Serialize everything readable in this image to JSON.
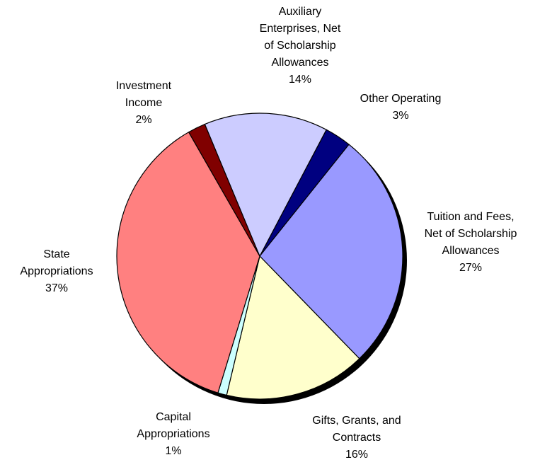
{
  "chart_data": {
    "type": "pie",
    "categories": [
      "Other Operating",
      "Tuition and Fees, Net of Scholarship Allowances",
      "Gifts, Grants, and Contracts",
      "Capital Appropriations",
      "State Appropriations",
      "Investment Income",
      "Auxiliary Enterprises, Net of Scholarship Allowances"
    ],
    "values": [
      3,
      27,
      16,
      1,
      37,
      2,
      14
    ],
    "value_labels": [
      "3%",
      "27%",
      "16%",
      "1%",
      "37%",
      "2%",
      "14%"
    ],
    "colors": [
      "#000080",
      "#9999ff",
      "#ffffcc",
      "#ccffff",
      "#ff8080",
      "#800000",
      "#ccccff"
    ]
  }
}
